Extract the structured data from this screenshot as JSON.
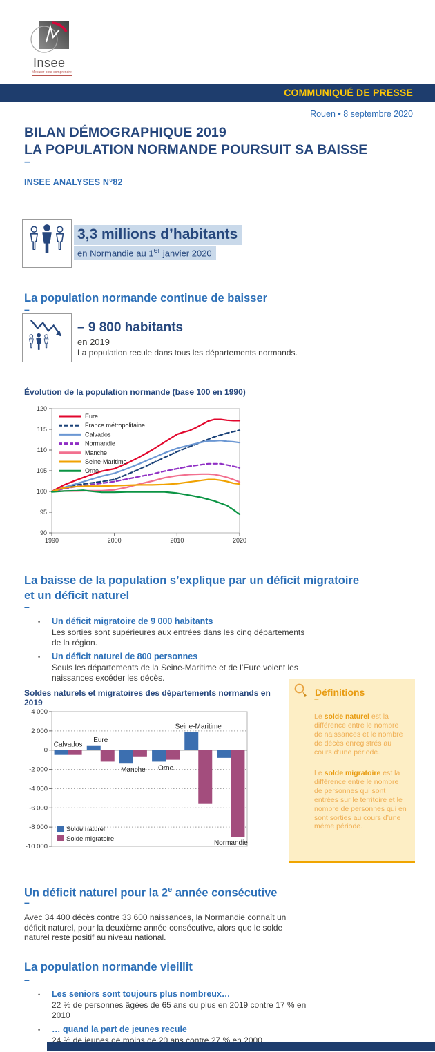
{
  "header": {
    "logo_name": "Insee",
    "logo_tagline": "Mesurer pour comprendre",
    "banner": "COMMUNIQUÉ DE PRESSE",
    "dateline": "Rouen • 8 septembre 2020"
  },
  "title": {
    "line1": "BILAN DÉMOGRAPHIQUE 2019",
    "line2": "LA POPULATION NORMANDE POURSUIT SA BAISSE",
    "dash": "–",
    "issue": "INSEE ANALYSES N°82"
  },
  "fig1": {
    "headline": "3,3 millions d’habitants",
    "sub_pre": "en Normandie au 1",
    "sub_sup": "er",
    "sub_post": " janvier 2020"
  },
  "section1": {
    "heading": "La population normande continue de baisser",
    "dash": "–"
  },
  "fig2": {
    "headline": "– 9 800 habitants",
    "line1": "en 2019",
    "line2": "La population recule dans tous les départements normands."
  },
  "section2": {
    "heading_line1": "La baisse de la population s’explique par un déficit migratoire",
    "heading_line2": "et un déficit naturel",
    "dash": "–",
    "bullets": [
      {
        "dot": "•",
        "title": "Un déficit migratoire de 9 000 habitants",
        "text": "Les sorties sont supérieures aux entrées dans les cinq départements de la région."
      },
      {
        "dot": "•",
        "title": "Un déficit naturel de 800 personnes",
        "text": "Seuls les départements de la Seine-Maritime et de l’Eure voient les naissances excéder les décès."
      }
    ]
  },
  "definitions": {
    "heading": "Définitions",
    "dash": "–",
    "p1_pre": "Le ",
    "p1_bold": "solde naturel",
    "p1_rest": " est la différence entre le nombre de naissances et le nombre de décès enregistrés au cours d’une période.",
    "p2_pre": "Le ",
    "p2_bold": "solde migratoire",
    "p2_rest": " est la différence entre le nombre de personnes qui sont entrées sur le territoire et le nombre de personnes qui en sont sorties au cours d’une même période."
  },
  "section3": {
    "heading_pre": "Un déficit naturel pour la 2",
    "heading_sup": "e",
    "heading_post": " année consécutive",
    "dash": "–",
    "paragraph": "Avec 34 400 décès contre 33 600 naissances, la Normandie connaît un déficit naturel, pour la deuxième année consécutive, alors que le solde naturel reste positif au niveau national."
  },
  "section4": {
    "heading": "La population normande vieillit",
    "dash": "–",
    "bullets": [
      {
        "dot": "•",
        "title": "Les seniors sont toujours plus nombreux…",
        "text": "22 % de personnes âgées de 65 ans ou plus en 2019 contre 17 % en 2010"
      },
      {
        "dot": "•",
        "title": "… quand la part de jeunes recule",
        "text": "24 % de jeunes de moins de 20 ans contre 27 % en 2000"
      }
    ]
  },
  "chart_data": [
    {
      "type": "line",
      "title": "Évolution de la population normande (base 100 en 1990)",
      "x_range": [
        1990,
        2020
      ],
      "y_range": [
        90,
        120
      ],
      "y_ticks": [
        90,
        95,
        100,
        105,
        110,
        115,
        120
      ],
      "x_ticks": [
        1990,
        2000,
        2010,
        2020
      ],
      "grid": "off",
      "legend_position": "top-left",
      "series": [
        {
          "name": "Eure",
          "color": "#e2062c",
          "dash": false,
          "points": [
            [
              1990,
              100
            ],
            [
              1992,
              101.6
            ],
            [
              1994,
              102.8
            ],
            [
              1996,
              103.9
            ],
            [
              1998,
              104.9
            ],
            [
              2000,
              105.5
            ],
            [
              2002,
              106.8
            ],
            [
              2004,
              108.3
            ],
            [
              2006,
              110.0
            ],
            [
              2008,
              111.9
            ],
            [
              2010,
              113.8
            ],
            [
              2011,
              114.3
            ],
            [
              2012,
              114.7
            ],
            [
              2013,
              115.4
            ],
            [
              2014,
              116.2
            ],
            [
              2015,
              117.0
            ],
            [
              2016,
              117.4
            ],
            [
              2017,
              117.4
            ],
            [
              2018,
              117.2
            ],
            [
              2019,
              117.1
            ],
            [
              2020,
              117.1
            ]
          ]
        },
        {
          "name": "France métropolitaine",
          "color": "#1b4278",
          "dash": true,
          "points": [
            [
              1990,
              100
            ],
            [
              1992,
              100.9
            ],
            [
              1994,
              101.6
            ],
            [
              1996,
              102.0
            ],
            [
              1998,
              102.4
            ],
            [
              2000,
              102.9
            ],
            [
              2002,
              104.1
            ],
            [
              2004,
              105.4
            ],
            [
              2006,
              106.8
            ],
            [
              2008,
              108.2
            ],
            [
              2010,
              109.6
            ],
            [
              2012,
              110.8
            ],
            [
              2014,
              112.0
            ],
            [
              2016,
              113.2
            ],
            [
              2018,
              114.1
            ],
            [
              2020,
              114.8
            ]
          ]
        },
        {
          "name": "Calvados",
          "color": "#6b97d3",
          "dash": false,
          "points": [
            [
              1990,
              100
            ],
            [
              1992,
              101.0
            ],
            [
              1994,
              101.9
            ],
            [
              1996,
              102.8
            ],
            [
              1998,
              103.7
            ],
            [
              2000,
              104.4
            ],
            [
              2002,
              105.5
            ],
            [
              2004,
              106.7
            ],
            [
              2006,
              108.0
            ],
            [
              2008,
              109.3
            ],
            [
              2010,
              110.4
            ],
            [
              2012,
              111.2
            ],
            [
              2014,
              111.9
            ],
            [
              2015,
              112.2
            ],
            [
              2016,
              112.2
            ],
            [
              2017,
              112.3
            ],
            [
              2018,
              112.1
            ],
            [
              2019,
              112.0
            ],
            [
              2020,
              111.8
            ]
          ]
        },
        {
          "name": "Normandie",
          "color": "#8f2fc4",
          "dash": true,
          "points": [
            [
              1990,
              100
            ],
            [
              1992,
              100.7
            ],
            [
              1994,
              101.2
            ],
            [
              1996,
              101.6
            ],
            [
              1998,
              102.0
            ],
            [
              2000,
              102.4
            ],
            [
              2002,
              103.0
            ],
            [
              2004,
              103.6
            ],
            [
              2006,
              104.2
            ],
            [
              2008,
              104.9
            ],
            [
              2010,
              105.5
            ],
            [
              2012,
              106.1
            ],
            [
              2014,
              106.5
            ],
            [
              2015,
              106.7
            ],
            [
              2016,
              106.7
            ],
            [
              2017,
              106.7
            ],
            [
              2018,
              106.4
            ],
            [
              2019,
              106.1
            ],
            [
              2020,
              105.7
            ]
          ]
        },
        {
          "name": "Manche",
          "color": "#f2708f",
          "dash": false,
          "points": [
            [
              1990,
              100
            ],
            [
              1992,
              100.1
            ],
            [
              1994,
              100.1
            ],
            [
              1996,
              100.2
            ],
            [
              1998,
              100.2
            ],
            [
              2000,
              100.4
            ],
            [
              2002,
              101.0
            ],
            [
              2004,
              101.8
            ],
            [
              2006,
              102.5
            ],
            [
              2008,
              103.3
            ],
            [
              2010,
              103.8
            ],
            [
              2012,
              104.1
            ],
            [
              2014,
              104.2
            ],
            [
              2015,
              104.2
            ],
            [
              2016,
              104.1
            ],
            [
              2017,
              103.8
            ],
            [
              2018,
              103.4
            ],
            [
              2019,
              102.9
            ],
            [
              2020,
              102.3
            ]
          ]
        },
        {
          "name": "Seine-Maritime",
          "color": "#f0a202",
          "dash": false,
          "points": [
            [
              1990,
              100
            ],
            [
              1992,
              100.9
            ],
            [
              1994,
              101.2
            ],
            [
              1996,
              101.3
            ],
            [
              1998,
              101.3
            ],
            [
              2000,
              101.4
            ],
            [
              2002,
              101.5
            ],
            [
              2004,
              101.6
            ],
            [
              2006,
              101.6
            ],
            [
              2008,
              101.7
            ],
            [
              2010,
              101.9
            ],
            [
              2012,
              102.3
            ],
            [
              2014,
              102.7
            ],
            [
              2015,
              102.9
            ],
            [
              2016,
              102.9
            ],
            [
              2017,
              102.7
            ],
            [
              2018,
              102.4
            ],
            [
              2019,
              102.0
            ],
            [
              2020,
              101.8
            ]
          ]
        },
        {
          "name": "Orne",
          "color": "#0b9444",
          "dash": false,
          "points": [
            [
              1990,
              99.9
            ],
            [
              1992,
              100.1
            ],
            [
              1994,
              100.2
            ],
            [
              1995,
              100.3
            ],
            [
              1996,
              100.1
            ],
            [
              1998,
              99.8
            ],
            [
              2000,
              99.8
            ],
            [
              2002,
              99.9
            ],
            [
              2004,
              99.9
            ],
            [
              2006,
              99.9
            ],
            [
              2008,
              99.9
            ],
            [
              2010,
              99.6
            ],
            [
              2012,
              99.1
            ],
            [
              2014,
              98.5
            ],
            [
              2016,
              97.7
            ],
            [
              2018,
              96.6
            ],
            [
              2019,
              95.6
            ],
            [
              2020,
              94.5
            ]
          ]
        }
      ]
    },
    {
      "type": "bar",
      "title": "Soldes naturels et migratoires des départements normands en 2019",
      "categories": [
        "Calvados",
        "Eure",
        "Manche",
        "Orne",
        "Seine-Maritime",
        "Normandie"
      ],
      "series": [
        {
          "name": "Solde naturel",
          "color": "#3c6fb0",
          "values": [
            -500,
            500,
            -1400,
            -1200,
            1900,
            -800
          ]
        },
        {
          "name": "Solde migratoire",
          "color": "#a34d7d",
          "values": [
            -500,
            -1200,
            -650,
            -1000,
            -5600,
            -9000
          ]
        }
      ],
      "ylim": [
        -10000,
        4000
      ],
      "y_ticks": [
        4000,
        2000,
        0,
        -2000,
        -4000,
        -6000,
        -8000,
        -10000
      ],
      "y_tick_labels": [
        "4 000",
        "2 000",
        "0",
        "-2 000",
        "-4 000",
        "-6 000",
        "-8 000",
        "-10 000"
      ],
      "grid": "dotted",
      "legend_position": "bottom-left",
      "label_positions": {
        "Calvados": "above",
        "Eure": "above",
        "Manche": "below",
        "Orne": "below",
        "Seine-Maritime": "above",
        "Normandie": "below"
      }
    }
  ]
}
